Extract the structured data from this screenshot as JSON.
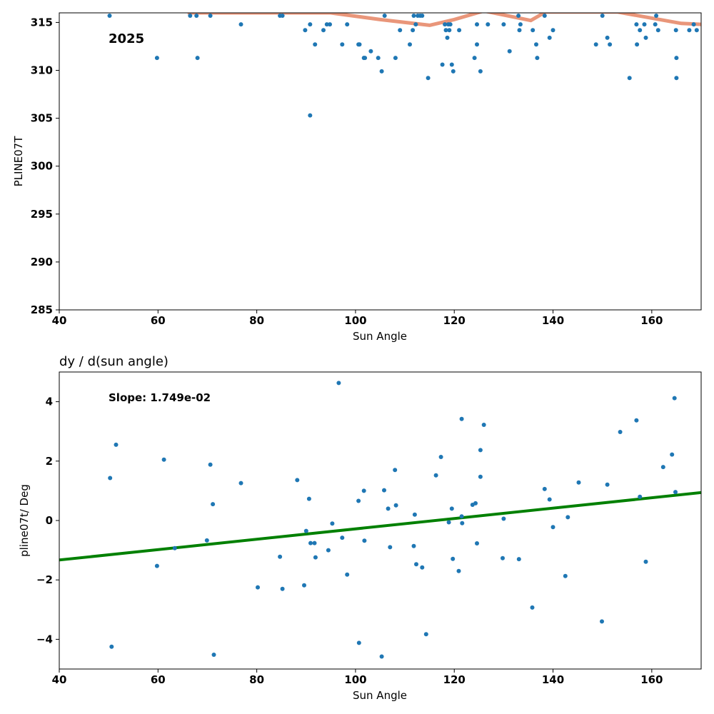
{
  "chart_data": [
    {
      "type": "scatter",
      "title": "",
      "xlabel": "Sun Angle",
      "ylabel": "PLINE07T",
      "xlim": [
        40,
        170
      ],
      "ylim": [
        285,
        316
      ],
      "xticks": [
        40,
        60,
        80,
        100,
        120,
        140,
        160
      ],
      "yticks": [
        285,
        290,
        295,
        300,
        305,
        310,
        315
      ],
      "annotation": "2025",
      "grid": false,
      "point_color": "#1f77b4",
      "series": [
        {
          "type": "scatter",
          "points": [
            [
              50.2,
              315.7
            ],
            [
              59.8,
              311.3
            ],
            [
              66.5,
              315.7
            ],
            [
              67.8,
              315.7
            ],
            [
              68.0,
              311.3
            ],
            [
              70.6,
              315.7
            ],
            [
              76.8,
              314.8
            ],
            [
              84.7,
              315.7
            ],
            [
              85.2,
              315.7
            ],
            [
              89.8,
              314.2
            ],
            [
              90.8,
              314.8
            ],
            [
              90.8,
              305.3
            ],
            [
              91.8,
              312.7
            ],
            [
              93.5,
              314.2
            ],
            [
              94.2,
              314.8
            ],
            [
              94.8,
              314.8
            ],
            [
              97.3,
              312.7
            ],
            [
              98.3,
              314.8
            ],
            [
              100.6,
              312.7
            ],
            [
              100.8,
              312.7
            ],
            [
              101.7,
              311.3
            ],
            [
              101.9,
              311.3
            ],
            [
              103.1,
              312.0
            ],
            [
              104.6,
              311.3
            ],
            [
              105.3,
              309.9
            ],
            [
              105.9,
              315.7
            ],
            [
              108.1,
              311.3
            ],
            [
              109.0,
              314.2
            ],
            [
              111.0,
              312.7
            ],
            [
              111.6,
              314.2
            ],
            [
              111.8,
              315.7
            ],
            [
              112.2,
              314.8
            ],
            [
              112.6,
              315.7
            ],
            [
              113.1,
              315.7
            ],
            [
              113.5,
              315.7
            ],
            [
              114.7,
              309.2
            ],
            [
              117.6,
              310.6
            ],
            [
              118.1,
              314.8
            ],
            [
              118.3,
              314.2
            ],
            [
              118.6,
              313.4
            ],
            [
              118.8,
              314.8
            ],
            [
              119.0,
              314.2
            ],
            [
              119.2,
              314.8
            ],
            [
              119.5,
              310.6
            ],
            [
              119.8,
              309.9
            ],
            [
              121.0,
              314.2
            ],
            [
              124.1,
              311.3
            ],
            [
              124.6,
              312.7
            ],
            [
              124.6,
              314.8
            ],
            [
              125.3,
              309.9
            ],
            [
              126.8,
              314.8
            ],
            [
              130.0,
              314.8
            ],
            [
              131.2,
              312.0
            ],
            [
              133.0,
              315.7
            ],
            [
              133.2,
              314.2
            ],
            [
              133.4,
              314.8
            ],
            [
              135.9,
              314.2
            ],
            [
              136.6,
              312.7
            ],
            [
              136.8,
              311.3
            ],
            [
              138.3,
              315.7
            ],
            [
              139.3,
              313.4
            ],
            [
              140.0,
              314.2
            ],
            [
              148.7,
              312.7
            ],
            [
              150.0,
              315.7
            ],
            [
              151.0,
              313.4
            ],
            [
              151.5,
              312.7
            ],
            [
              155.5,
              309.2
            ],
            [
              156.9,
              314.8
            ],
            [
              157.0,
              312.7
            ],
            [
              157.6,
              314.2
            ],
            [
              158.5,
              314.8
            ],
            [
              158.8,
              313.4
            ],
            [
              160.7,
              314.8
            ],
            [
              160.9,
              315.7
            ],
            [
              161.3,
              314.2
            ],
            [
              164.9,
              314.2
            ],
            [
              165.0,
              311.3
            ],
            [
              165.0,
              309.2
            ],
            [
              167.6,
              314.2
            ],
            [
              168.5,
              314.8
            ],
            [
              169.1,
              314.2
            ]
          ]
        },
        {
          "type": "line",
          "color": "#e9967a",
          "points": [
            [
              66.0,
              316.0
            ],
            [
              95.0,
              316.0
            ],
            [
              105.0,
              315.3
            ],
            [
              115.0,
              314.7
            ],
            [
              120.0,
              315.3
            ],
            [
              126.0,
              316.2
            ],
            [
              135.5,
              315.2
            ],
            [
              138.5,
              316.1
            ],
            [
              153.0,
              316.1
            ],
            [
              166.0,
              314.9
            ],
            [
              170.0,
              314.8
            ]
          ]
        }
      ]
    },
    {
      "type": "scatter",
      "title": "dy / d(sun angle)",
      "xlabel": "Sun Angle",
      "ylabel": "pline07t/ Deg",
      "xlim": [
        40,
        170
      ],
      "ylim": [
        -5,
        5
      ],
      "xticks": [
        40,
        60,
        80,
        100,
        120,
        140,
        160
      ],
      "yticks": [
        -4,
        -2,
        0,
        2,
        4
      ],
      "annotation": "Slope: 1.749e-02",
      "grid": false,
      "point_color": "#1f77b4",
      "series": [
        {
          "type": "scatter",
          "points": [
            [
              50.3,
              1.43
            ],
            [
              50.6,
              -4.25
            ],
            [
              51.5,
              2.55
            ],
            [
              59.8,
              -1.53
            ],
            [
              61.2,
              2.05
            ],
            [
              63.4,
              -0.93
            ],
            [
              69.9,
              -0.67
            ],
            [
              70.6,
              1.88
            ],
            [
              71.1,
              0.55
            ],
            [
              71.3,
              -4.52
            ],
            [
              76.8,
              1.26
            ],
            [
              80.2,
              -2.25
            ],
            [
              84.7,
              -1.22
            ],
            [
              85.2,
              -2.3
            ],
            [
              88.2,
              1.36
            ],
            [
              89.6,
              -2.18
            ],
            [
              90.0,
              -0.35
            ],
            [
              90.6,
              0.73
            ],
            [
              90.9,
              -0.76
            ],
            [
              91.7,
              -0.76
            ],
            [
              91.9,
              -1.24
            ],
            [
              94.5,
              -1.0
            ],
            [
              95.3,
              -0.1
            ],
            [
              96.6,
              4.63
            ],
            [
              97.3,
              -0.58
            ],
            [
              98.3,
              -1.82
            ],
            [
              100.6,
              0.66
            ],
            [
              100.7,
              -4.12
            ],
            [
              101.7,
              1.0
            ],
            [
              101.8,
              -0.68
            ],
            [
              105.3,
              -4.58
            ],
            [
              105.8,
              1.02
            ],
            [
              106.6,
              0.4
            ],
            [
              107.0,
              -0.9
            ],
            [
              108.0,
              1.7
            ],
            [
              108.2,
              0.51
            ],
            [
              111.8,
              -0.86
            ],
            [
              112.0,
              0.2
            ],
            [
              112.3,
              -1.47
            ],
            [
              113.5,
              -1.58
            ],
            [
              114.3,
              -3.83
            ],
            [
              116.3,
              1.52
            ],
            [
              117.3,
              2.14
            ],
            [
              118.9,
              -0.06
            ],
            [
              119.5,
              0.4
            ],
            [
              119.7,
              -1.29
            ],
            [
              120.9,
              -1.7
            ],
            [
              121.5,
              0.14
            ],
            [
              121.5,
              3.42
            ],
            [
              121.6,
              -0.09
            ],
            [
              123.7,
              0.53
            ],
            [
              124.3,
              0.58
            ],
            [
              124.6,
              -0.77
            ],
            [
              125.3,
              2.37
            ],
            [
              125.3,
              1.47
            ],
            [
              126.0,
              3.22
            ],
            [
              129.8,
              -1.27
            ],
            [
              130.0,
              0.06
            ],
            [
              133.1,
              -1.3
            ],
            [
              135.8,
              -2.93
            ],
            [
              138.3,
              1.06
            ],
            [
              139.3,
              0.71
            ],
            [
              140.0,
              -0.22
            ],
            [
              142.5,
              -1.87
            ],
            [
              143.0,
              0.11
            ],
            [
              145.2,
              1.28
            ],
            [
              149.9,
              -3.4
            ],
            [
              151.0,
              1.21
            ],
            [
              153.6,
              2.98
            ],
            [
              156.9,
              3.37
            ],
            [
              157.6,
              0.8
            ],
            [
              158.8,
              -1.39
            ],
            [
              162.3,
              1.8
            ],
            [
              164.1,
              2.22
            ],
            [
              164.6,
              4.12
            ],
            [
              164.8,
              0.96
            ]
          ]
        },
        {
          "type": "line",
          "color": "#008000",
          "points": [
            [
              40,
              -1.33
            ],
            [
              170,
              0.94
            ]
          ]
        }
      ]
    }
  ]
}
